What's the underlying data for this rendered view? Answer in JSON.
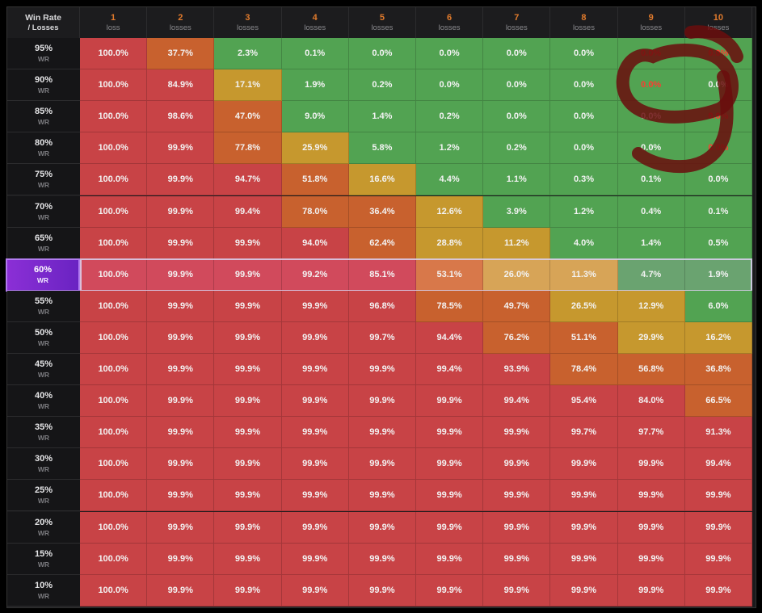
{
  "chart_data": {
    "type": "heatmap",
    "corner_label_line1": "Win Rate",
    "corner_label_line2": "/ Losses",
    "columns": [
      {
        "num": "1",
        "sub": "loss"
      },
      {
        "num": "2",
        "sub": "losses"
      },
      {
        "num": "3",
        "sub": "losses"
      },
      {
        "num": "4",
        "sub": "losses"
      },
      {
        "num": "5",
        "sub": "losses"
      },
      {
        "num": "6",
        "sub": "losses"
      },
      {
        "num": "7",
        "sub": "losses"
      },
      {
        "num": "8",
        "sub": "losses"
      },
      {
        "num": "9",
        "sub": "losses"
      },
      {
        "num": "10",
        "sub": "losses"
      }
    ],
    "row_suffix": "WR",
    "rows": [
      "95%",
      "90%",
      "85%",
      "80%",
      "75%",
      "70%",
      "65%",
      "60%",
      "55%",
      "50%",
      "45%",
      "40%",
      "35%",
      "30%",
      "25%",
      "20%",
      "15%",
      "10%"
    ],
    "highlighted_row": "60%",
    "values": [
      [
        100.0,
        37.7,
        2.3,
        0.1,
        0.0,
        0.0,
        0.0,
        0.0,
        0.0,
        0.0
      ],
      [
        100.0,
        84.9,
        17.1,
        1.9,
        0.2,
        0.0,
        0.0,
        0.0,
        0.0,
        0.0
      ],
      [
        100.0,
        98.6,
        47.0,
        9.0,
        1.4,
        0.2,
        0.0,
        0.0,
        0.0,
        0.0
      ],
      [
        100.0,
        99.9,
        77.8,
        25.9,
        5.8,
        1.2,
        0.2,
        0.0,
        0.0,
        0.0
      ],
      [
        100.0,
        99.9,
        94.7,
        51.8,
        16.6,
        4.4,
        1.1,
        0.3,
        0.1,
        0.0
      ],
      [
        100.0,
        99.9,
        99.4,
        78.0,
        36.4,
        12.6,
        3.9,
        1.2,
        0.4,
        0.1
      ],
      [
        100.0,
        99.9,
        99.9,
        94.0,
        62.4,
        28.8,
        11.2,
        4.0,
        1.4,
        0.5
      ],
      [
        100.0,
        99.9,
        99.9,
        99.2,
        85.1,
        53.1,
        26.0,
        11.3,
        4.7,
        1.9
      ],
      [
        100.0,
        99.9,
        99.9,
        99.9,
        96.8,
        78.5,
        49.7,
        26.5,
        12.9,
        6.0
      ],
      [
        100.0,
        99.9,
        99.9,
        99.9,
        99.7,
        94.4,
        76.2,
        51.1,
        29.9,
        16.2
      ],
      [
        100.0,
        99.9,
        99.9,
        99.9,
        99.9,
        99.4,
        93.9,
        78.4,
        56.8,
        36.8
      ],
      [
        100.0,
        99.9,
        99.9,
        99.9,
        99.9,
        99.9,
        99.4,
        95.4,
        84.0,
        66.5
      ],
      [
        100.0,
        99.9,
        99.9,
        99.9,
        99.9,
        99.9,
        99.9,
        99.7,
        97.7,
        91.3
      ],
      [
        100.0,
        99.9,
        99.9,
        99.9,
        99.9,
        99.9,
        99.9,
        99.9,
        99.9,
        99.4
      ],
      [
        100.0,
        99.9,
        99.9,
        99.9,
        99.9,
        99.9,
        99.9,
        99.9,
        99.9,
        99.9
      ],
      [
        100.0,
        99.9,
        99.9,
        99.9,
        99.9,
        99.9,
        99.9,
        99.9,
        99.9,
        99.9
      ],
      [
        100.0,
        99.9,
        99.9,
        99.9,
        99.9,
        99.9,
        99.9,
        99.9,
        99.9,
        99.9
      ],
      [
        100.0,
        99.9,
        99.9,
        99.9,
        99.9,
        99.9,
        99.9,
        99.9,
        99.9,
        99.9
      ]
    ],
    "red_text_cells": [
      [
        0,
        8
      ],
      [
        0,
        9
      ],
      [
        1,
        8
      ],
      [
        2,
        9
      ],
      [
        3,
        9
      ]
    ],
    "colors": {
      "high": "#c84346",
      "upper": "#c8612e",
      "mid": "#c6982e",
      "low": "#52a352",
      "highlight_high": "#d14a5c",
      "highlight_upper": "#d8784a",
      "highlight_mid": "#d7a457",
      "highlight_low": "#6aa370",
      "purple": "#8b2fd6",
      "scribble": "#6a0d0d"
    },
    "legend": "none",
    "grid": true
  }
}
